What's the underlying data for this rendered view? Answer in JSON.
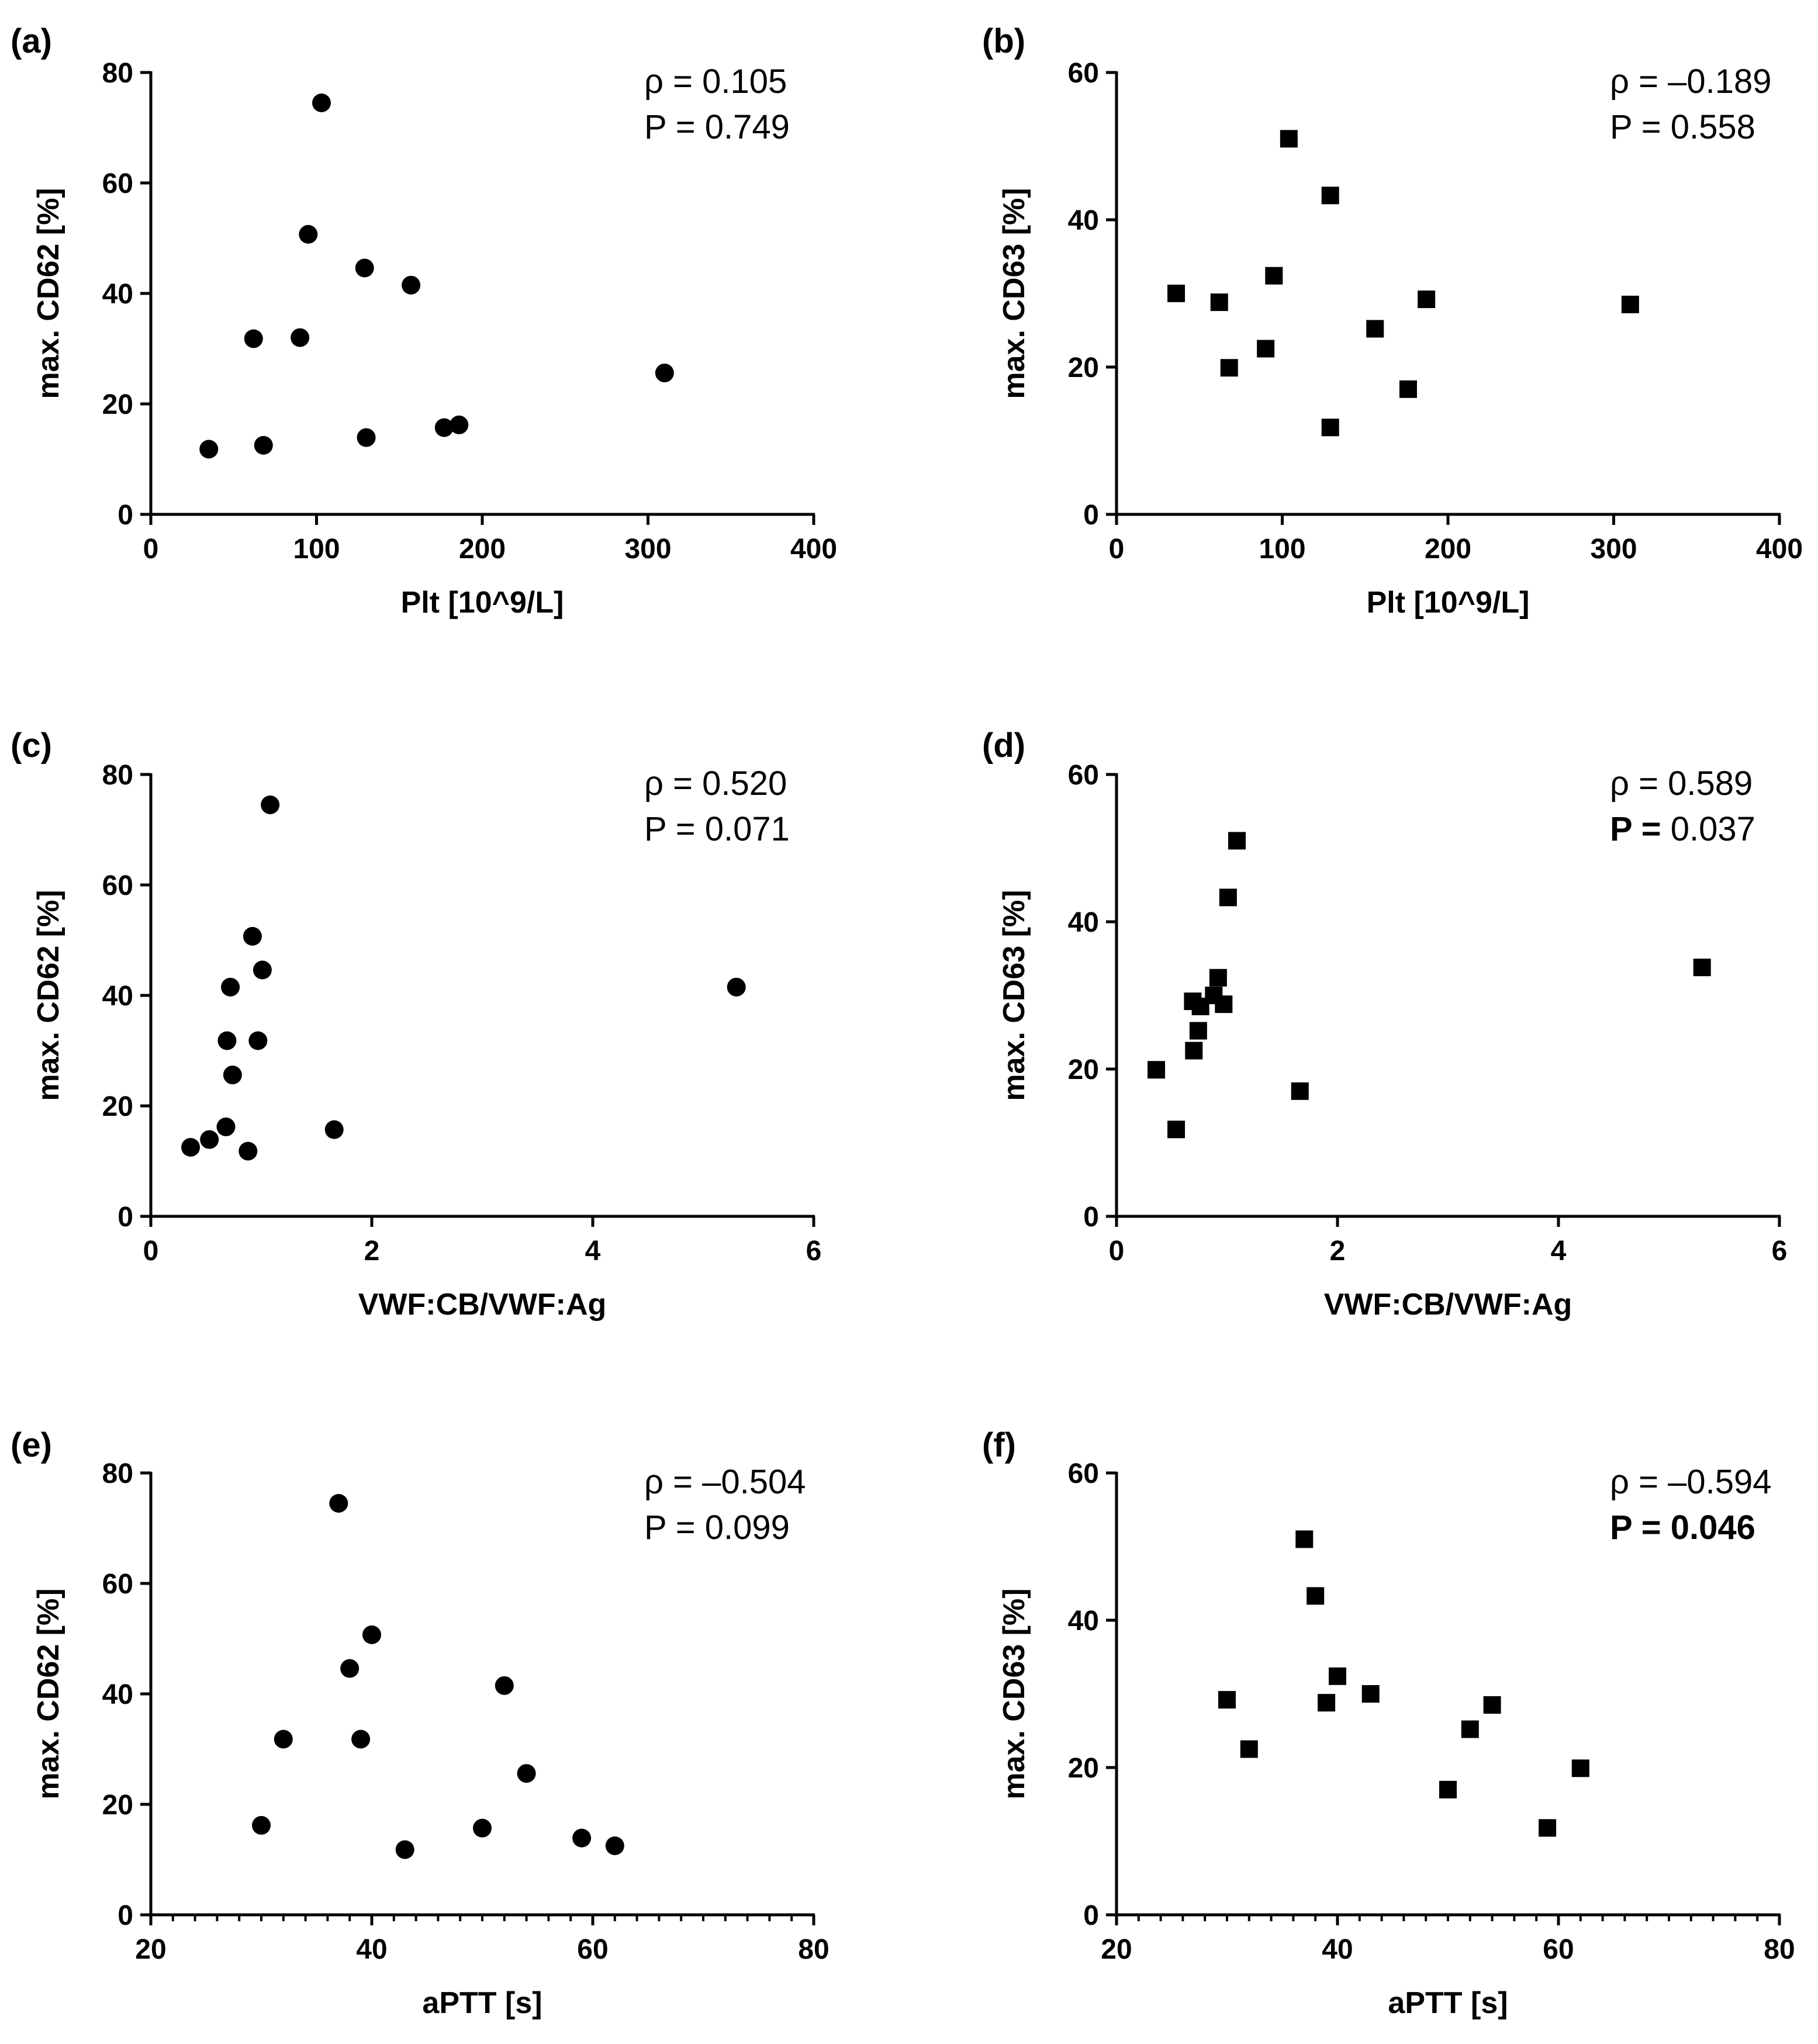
{
  "chart_data": [
    {
      "panel": "(a)",
      "type": "scatter",
      "marker": "circle",
      "xlabel": "Plt [10^9/L]",
      "ylabel": "max. CD62 [%]",
      "xlim": [
        0,
        400
      ],
      "ylim": [
        0,
        80
      ],
      "xticks": [
        0,
        100,
        200,
        300,
        400
      ],
      "yticks": [
        0,
        20,
        40,
        60,
        80
      ],
      "minor_x": false,
      "stats": [
        {
          "label": "ρ",
          "text": "ρ = 0.105",
          "bold": false
        },
        {
          "label": "P",
          "text": "P = 0.749",
          "bold": false
        }
      ],
      "points": [
        [
          35,
          11.8
        ],
        [
          62,
          31.8
        ],
        [
          68,
          12.5
        ],
        [
          90,
          32
        ],
        [
          95,
          50.7
        ],
        [
          103,
          74.5
        ],
        [
          129,
          44.6
        ],
        [
          130,
          13.9
        ],
        [
          157,
          41.5
        ],
        [
          177,
          15.7
        ],
        [
          186,
          16.2
        ],
        [
          310,
          25.6
        ]
      ]
    },
    {
      "panel": "(b)",
      "type": "scatter",
      "marker": "square",
      "xlabel": "Plt [10^9/L]",
      "ylabel": "max. CD63 [%]",
      "xlim": [
        0,
        400
      ],
      "ylim": [
        0,
        60
      ],
      "xticks": [
        0,
        100,
        200,
        300,
        400
      ],
      "yticks": [
        0,
        20,
        40,
        60
      ],
      "minor_x": false,
      "stats": [
        {
          "label": "ρ",
          "text": "ρ = –0.189",
          "bold": false
        },
        {
          "label": "P",
          "text": "P = 0.558",
          "bold": false
        }
      ],
      "points": [
        [
          36,
          30
        ],
        [
          62,
          28.8
        ],
        [
          68,
          19.9
        ],
        [
          90,
          22.5
        ],
        [
          95,
          32.4
        ],
        [
          104,
          51
        ],
        [
          129,
          43.3
        ],
        [
          129,
          11.8
        ],
        [
          156,
          25.2
        ],
        [
          176,
          17
        ],
        [
          187,
          29.2
        ],
        [
          310,
          28.5
        ]
      ]
    },
    {
      "panel": "(c)",
      "type": "scatter",
      "marker": "circle",
      "xlabel": "VWF:CB/VWF:Ag",
      "ylabel": "max. CD62 [%]",
      "xlim": [
        0,
        6
      ],
      "ylim": [
        0,
        80
      ],
      "xticks": [
        0,
        2,
        4,
        6
      ],
      "yticks": [
        0,
        20,
        40,
        60,
        80
      ],
      "minor_x": false,
      "stats": [
        {
          "label": "ρ",
          "text": "ρ = 0.520",
          "bold": false
        },
        {
          "label": "P",
          "text": "P = 0.071",
          "bold": false
        }
      ],
      "points": [
        [
          0.36,
          12.5
        ],
        [
          0.53,
          13.9
        ],
        [
          0.68,
          16.2
        ],
        [
          0.69,
          31.8
        ],
        [
          0.72,
          41.5
        ],
        [
          0.74,
          25.6
        ],
        [
          0.88,
          11.8
        ],
        [
          0.92,
          50.7
        ],
        [
          0.97,
          31.8
        ],
        [
          1.01,
          44.6
        ],
        [
          1.08,
          74.5
        ],
        [
          1.66,
          15.7
        ],
        [
          5.3,
          41.5
        ]
      ]
    },
    {
      "panel": "(d)",
      "type": "scatter",
      "marker": "square",
      "xlabel": "VWF:CB/VWF:Ag",
      "ylabel": "max. CD63 [%]",
      "xlim": [
        0,
        6
      ],
      "ylim": [
        0,
        60
      ],
      "xticks": [
        0,
        2,
        4,
        6
      ],
      "yticks": [
        0,
        20,
        40,
        60
      ],
      "minor_x": false,
      "stats": [
        {
          "label": "ρ",
          "text": "ρ = 0.589",
          "bold": false
        },
        {
          "label": "P",
          "text": "P = 0.037",
          "bold": false,
          "bold_prefix": "P ="
        }
      ],
      "points": [
        [
          0.36,
          19.9
        ],
        [
          0.54,
          11.8
        ],
        [
          0.69,
          29.2
        ],
        [
          0.7,
          22.5
        ],
        [
          0.74,
          25.2
        ],
        [
          0.76,
          28.5
        ],
        [
          0.88,
          30
        ],
        [
          0.92,
          32.4
        ],
        [
          0.97,
          28.8
        ],
        [
          1.01,
          43.3
        ],
        [
          1.09,
          51
        ],
        [
          1.66,
          17
        ],
        [
          5.3,
          33.8
        ]
      ]
    },
    {
      "panel": "(e)",
      "type": "scatter",
      "marker": "circle",
      "xlabel": "aPTT [s]",
      "ylabel": "max. CD62 [%]",
      "xlim": [
        20,
        80
      ],
      "ylim": [
        0,
        80
      ],
      "xticks": [
        20,
        40,
        60,
        80
      ],
      "yticks": [
        0,
        20,
        40,
        60,
        80
      ],
      "minor_x": true,
      "stats": [
        {
          "label": "ρ",
          "text": "ρ = –0.504",
          "bold": false
        },
        {
          "label": "P",
          "text": "P = 0.099",
          "bold": false
        }
      ],
      "points": [
        [
          30,
          16.2
        ],
        [
          32,
          31.8
        ],
        [
          37,
          74.5
        ],
        [
          38,
          44.6
        ],
        [
          39,
          31.8
        ],
        [
          40,
          50.7
        ],
        [
          43,
          11.8
        ],
        [
          50,
          15.7
        ],
        [
          52,
          41.5
        ],
        [
          54,
          25.6
        ],
        [
          59,
          13.9
        ],
        [
          62,
          12.5
        ]
      ]
    },
    {
      "panel": "(f)",
      "type": "scatter",
      "marker": "square",
      "xlabel": "aPTT [s]",
      "ylabel": "max. CD63 [%]",
      "xlim": [
        20,
        80
      ],
      "ylim": [
        0,
        60
      ],
      "xticks": [
        20,
        40,
        60,
        80
      ],
      "yticks": [
        0,
        20,
        40,
        60
      ],
      "minor_x": true,
      "stats": [
        {
          "label": "ρ",
          "text": "ρ = –0.594",
          "bold": false
        },
        {
          "label": "P",
          "text": "P = 0.046",
          "bold": true
        }
      ],
      "points": [
        [
          30,
          29.2
        ],
        [
          32,
          22.5
        ],
        [
          37,
          51
        ],
        [
          38,
          43.3
        ],
        [
          39,
          28.8
        ],
        [
          40,
          32.4
        ],
        [
          43,
          30
        ],
        [
          50,
          17
        ],
        [
          52,
          25.2
        ],
        [
          54,
          28.5
        ],
        [
          59,
          11.8
        ],
        [
          62,
          19.9
        ]
      ]
    }
  ]
}
